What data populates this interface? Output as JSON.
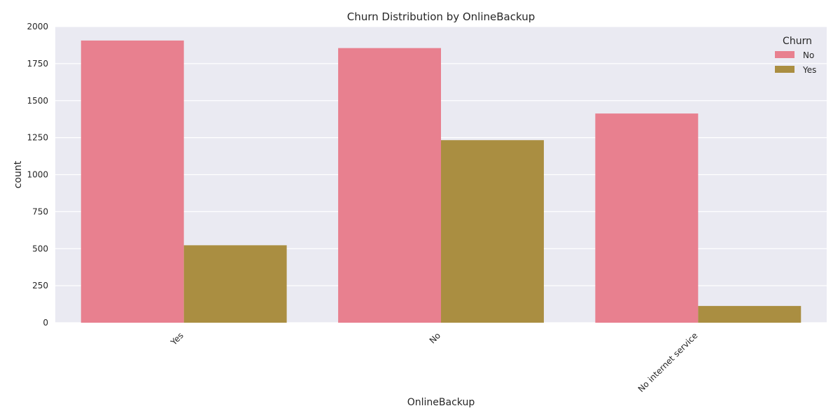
{
  "chart_data": {
    "type": "bar",
    "title": "Churn Distribution by OnlineBackup",
    "xlabel": "OnlineBackup",
    "ylabel": "count",
    "categories": [
      "Yes",
      "No",
      "No internet service"
    ],
    "series": [
      {
        "name": "No",
        "values": [
          1906,
          1855,
          1413
        ],
        "color": "#e8808f"
      },
      {
        "name": "Yes",
        "values": [
          523,
          1233,
          113
        ],
        "color": "#aa8e41"
      }
    ],
    "ylim": [
      0,
      2000
    ],
    "yticks": [
      0,
      250,
      500,
      750,
      1000,
      1250,
      1500,
      1750,
      2000
    ],
    "grid": true,
    "legend": {
      "title": "Churn",
      "placement": "top-right"
    },
    "background_color": "#eaeaf2"
  }
}
